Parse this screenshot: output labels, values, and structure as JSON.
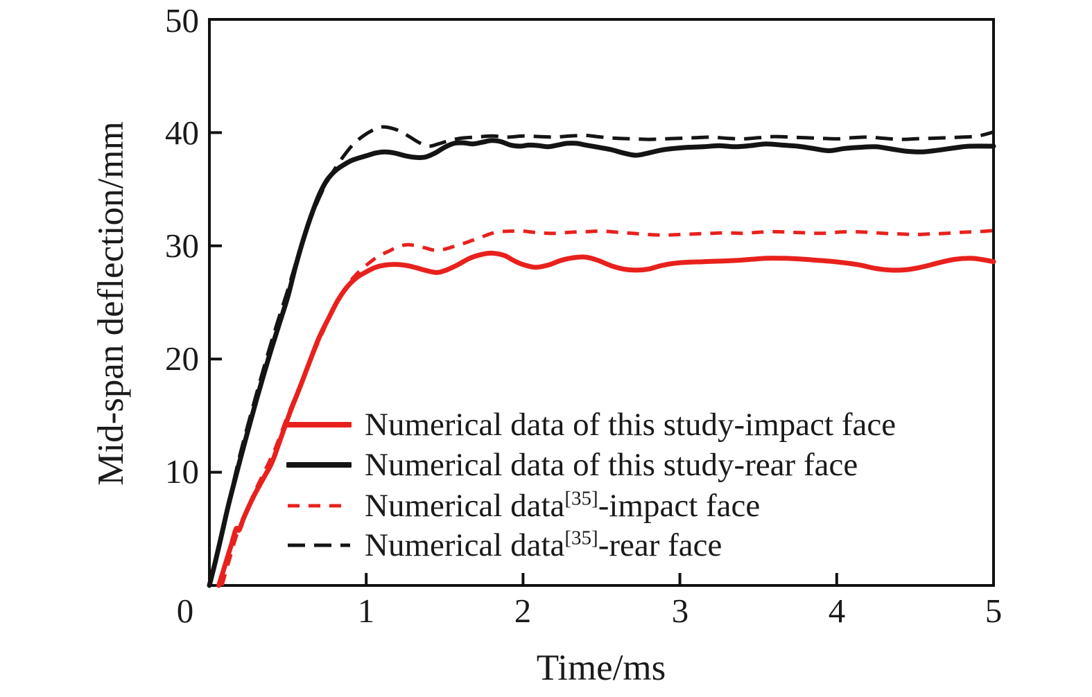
{
  "figure": {
    "background": "#ffffff",
    "axis_color": "#111111",
    "accent_red": "#e8211d",
    "accent_black": "#141414"
  },
  "axes": {
    "x": {
      "title": "Time/ms",
      "tick_labels": [
        "0",
        "1",
        "2",
        "3",
        "4",
        "5"
      ]
    },
    "y": {
      "title": "Mid-span deflection/mm",
      "tick_labels": [
        "10",
        "20",
        "30",
        "40",
        "50"
      ]
    }
  },
  "legend": {
    "items": [
      {
        "pre": "Numerical data of this study-impact face",
        "sup": "",
        "post": ""
      },
      {
        "pre": "Numerical data of this study-rear face",
        "sup": "",
        "post": ""
      },
      {
        "pre": "Numerical data",
        "sup": "[35]",
        "post": "-impact face"
      },
      {
        "pre": "Numerical data",
        "sup": "[35]",
        "post": "-rear face"
      }
    ]
  },
  "chart_data": {
    "type": "line",
    "title": "",
    "xlabel": "Time/ms",
    "ylabel": "Mid-span deflection/mm",
    "xlim": [
      0,
      5
    ],
    "ylim": [
      0,
      50
    ],
    "xticks": [
      0,
      1,
      2,
      3,
      4,
      5
    ],
    "yticks": [
      10,
      20,
      30,
      40,
      50
    ],
    "grid": false,
    "frame": true,
    "legend_position": "inside-lower-right",
    "axis_color": "#111111",
    "series": [
      {
        "name": "Numerical data of this study-impact face",
        "color": "#e8211d",
        "style": "solid",
        "width": 7,
        "dash": null,
        "points": [
          [
            0.06,
            0
          ],
          [
            0.1,
            1.8
          ],
          [
            0.14,
            3.6
          ],
          [
            0.17,
            5.0
          ],
          [
            0.19,
            4.9
          ],
          [
            0.22,
            6.0
          ],
          [
            0.28,
            7.8
          ],
          [
            0.35,
            9.6
          ],
          [
            0.4,
            10.9
          ],
          [
            0.46,
            13.2
          ],
          [
            0.52,
            15.5
          ],
          [
            0.58,
            17.6
          ],
          [
            0.64,
            19.8
          ],
          [
            0.7,
            21.9
          ],
          [
            0.76,
            23.6
          ],
          [
            0.82,
            25.2
          ],
          [
            0.88,
            26.4
          ],
          [
            0.94,
            27.2
          ],
          [
            1.0,
            27.7
          ],
          [
            1.06,
            28.1
          ],
          [
            1.12,
            28.3
          ],
          [
            1.2,
            28.35
          ],
          [
            1.28,
            28.2
          ],
          [
            1.36,
            27.9
          ],
          [
            1.44,
            27.65
          ],
          [
            1.5,
            27.8
          ],
          [
            1.58,
            28.3
          ],
          [
            1.66,
            28.9
          ],
          [
            1.74,
            29.25
          ],
          [
            1.8,
            29.35
          ],
          [
            1.88,
            29.15
          ],
          [
            1.94,
            28.7
          ],
          [
            2.0,
            28.35
          ],
          [
            2.08,
            28.1
          ],
          [
            2.16,
            28.3
          ],
          [
            2.24,
            28.7
          ],
          [
            2.32,
            28.95
          ],
          [
            2.4,
            29.0
          ],
          [
            2.48,
            28.7
          ],
          [
            2.56,
            28.25
          ],
          [
            2.64,
            27.95
          ],
          [
            2.72,
            27.85
          ],
          [
            2.8,
            27.95
          ],
          [
            2.88,
            28.25
          ],
          [
            2.96,
            28.45
          ],
          [
            3.05,
            28.55
          ],
          [
            3.15,
            28.6
          ],
          [
            3.25,
            28.65
          ],
          [
            3.35,
            28.7
          ],
          [
            3.45,
            28.8
          ],
          [
            3.55,
            28.9
          ],
          [
            3.65,
            28.9
          ],
          [
            3.75,
            28.85
          ],
          [
            3.85,
            28.75
          ],
          [
            3.95,
            28.65
          ],
          [
            4.05,
            28.5
          ],
          [
            4.15,
            28.3
          ],
          [
            4.25,
            28.0
          ],
          [
            4.35,
            27.85
          ],
          [
            4.45,
            27.9
          ],
          [
            4.55,
            28.15
          ],
          [
            4.65,
            28.5
          ],
          [
            4.75,
            28.8
          ],
          [
            4.85,
            28.9
          ],
          [
            4.92,
            28.8
          ],
          [
            5.0,
            28.6
          ]
        ]
      },
      {
        "name": "Numerical data of this study-rear face",
        "color": "#141414",
        "style": "solid",
        "width": 7,
        "dash": null,
        "points": [
          [
            0.0,
            0
          ],
          [
            0.04,
            2.2
          ],
          [
            0.08,
            4.6
          ],
          [
            0.12,
            7.0
          ],
          [
            0.16,
            9.2
          ],
          [
            0.2,
            11.3
          ],
          [
            0.25,
            13.9
          ],
          [
            0.3,
            16.4
          ],
          [
            0.35,
            18.8
          ],
          [
            0.4,
            21.1
          ],
          [
            0.45,
            23.3
          ],
          [
            0.5,
            25.5
          ],
          [
            0.55,
            28.2
          ],
          [
            0.6,
            30.6
          ],
          [
            0.65,
            32.7
          ],
          [
            0.7,
            34.5
          ],
          [
            0.75,
            35.8
          ],
          [
            0.8,
            36.6
          ],
          [
            0.85,
            37.1
          ],
          [
            0.9,
            37.5
          ],
          [
            0.95,
            37.75
          ],
          [
            1.0,
            37.95
          ],
          [
            1.06,
            38.2
          ],
          [
            1.12,
            38.3
          ],
          [
            1.18,
            38.2
          ],
          [
            1.25,
            37.95
          ],
          [
            1.32,
            37.8
          ],
          [
            1.38,
            37.85
          ],
          [
            1.44,
            38.2
          ],
          [
            1.5,
            38.7
          ],
          [
            1.56,
            39.05
          ],
          [
            1.62,
            39.1
          ],
          [
            1.68,
            39.0
          ],
          [
            1.74,
            39.15
          ],
          [
            1.8,
            39.3
          ],
          [
            1.86,
            39.2
          ],
          [
            1.92,
            38.9
          ],
          [
            1.98,
            38.8
          ],
          [
            2.04,
            38.9
          ],
          [
            2.1,
            38.85
          ],
          [
            2.16,
            38.75
          ],
          [
            2.22,
            38.9
          ],
          [
            2.28,
            39.05
          ],
          [
            2.34,
            39.05
          ],
          [
            2.4,
            38.9
          ],
          [
            2.48,
            38.7
          ],
          [
            2.56,
            38.5
          ],
          [
            2.64,
            38.2
          ],
          [
            2.72,
            38.0
          ],
          [
            2.8,
            38.2
          ],
          [
            2.88,
            38.45
          ],
          [
            2.96,
            38.6
          ],
          [
            3.05,
            38.7
          ],
          [
            3.15,
            38.75
          ],
          [
            3.25,
            38.85
          ],
          [
            3.35,
            38.75
          ],
          [
            3.45,
            38.85
          ],
          [
            3.55,
            39.0
          ],
          [
            3.65,
            38.9
          ],
          [
            3.75,
            38.8
          ],
          [
            3.85,
            38.6
          ],
          [
            3.95,
            38.4
          ],
          [
            4.05,
            38.6
          ],
          [
            4.15,
            38.7
          ],
          [
            4.25,
            38.75
          ],
          [
            4.35,
            38.55
          ],
          [
            4.45,
            38.35
          ],
          [
            4.55,
            38.3
          ],
          [
            4.65,
            38.45
          ],
          [
            4.75,
            38.65
          ],
          [
            4.85,
            38.8
          ],
          [
            5.0,
            38.8
          ]
        ]
      },
      {
        "name": "Numerical data[35]-impact face",
        "color": "#e8211d",
        "style": "dashed",
        "width": 5,
        "dash": [
          17,
          13
        ],
        "points": [
          [
            0.08,
            0
          ],
          [
            0.13,
            2.4
          ],
          [
            0.18,
            4.7
          ],
          [
            0.24,
            6.7
          ],
          [
            0.3,
            8.6
          ],
          [
            0.36,
            10.3
          ],
          [
            0.42,
            12.1
          ],
          [
            0.48,
            14.3
          ],
          [
            0.54,
            16.4
          ],
          [
            0.6,
            18.4
          ],
          [
            0.66,
            20.4
          ],
          [
            0.72,
            22.3
          ],
          [
            0.78,
            24.1
          ],
          [
            0.84,
            25.7
          ],
          [
            0.9,
            26.9
          ],
          [
            0.96,
            27.8
          ],
          [
            1.02,
            28.5
          ],
          [
            1.08,
            29.1
          ],
          [
            1.14,
            29.5
          ],
          [
            1.2,
            29.9
          ],
          [
            1.26,
            30.1
          ],
          [
            1.32,
            30.0
          ],
          [
            1.38,
            29.8
          ],
          [
            1.44,
            29.6
          ],
          [
            1.5,
            29.7
          ],
          [
            1.56,
            29.95
          ],
          [
            1.62,
            30.2
          ],
          [
            1.68,
            30.5
          ],
          [
            1.74,
            30.8
          ],
          [
            1.8,
            31.1
          ],
          [
            1.86,
            31.25
          ],
          [
            1.92,
            31.3
          ],
          [
            2.0,
            31.3
          ],
          [
            2.1,
            31.15
          ],
          [
            2.2,
            31.1
          ],
          [
            2.3,
            31.2
          ],
          [
            2.4,
            31.25
          ],
          [
            2.5,
            31.3
          ],
          [
            2.6,
            31.2
          ],
          [
            2.7,
            31.1
          ],
          [
            2.8,
            31.0
          ],
          [
            2.9,
            30.95
          ],
          [
            3.0,
            31.0
          ],
          [
            3.1,
            31.05
          ],
          [
            3.2,
            31.1
          ],
          [
            3.3,
            31.15
          ],
          [
            3.4,
            31.1
          ],
          [
            3.5,
            31.2
          ],
          [
            3.6,
            31.25
          ],
          [
            3.7,
            31.2
          ],
          [
            3.8,
            31.15
          ],
          [
            3.9,
            31.1
          ],
          [
            4.0,
            31.2
          ],
          [
            4.1,
            31.25
          ],
          [
            4.2,
            31.2
          ],
          [
            4.3,
            31.1
          ],
          [
            4.4,
            31.05
          ],
          [
            4.5,
            31.0
          ],
          [
            4.6,
            31.05
          ],
          [
            4.7,
            31.1
          ],
          [
            4.8,
            31.2
          ],
          [
            4.9,
            31.25
          ],
          [
            5.0,
            31.35
          ]
        ]
      },
      {
        "name": "Numerical data[35]-rear face",
        "color": "#141414",
        "style": "dashed",
        "width": 5,
        "dash": [
          25,
          13
        ],
        "points": [
          [
            0.0,
            0
          ],
          [
            0.05,
            3.0
          ],
          [
            0.1,
            6.0
          ],
          [
            0.15,
            8.9
          ],
          [
            0.2,
            11.8
          ],
          [
            0.26,
            14.9
          ],
          [
            0.32,
            17.9
          ],
          [
            0.38,
            20.8
          ],
          [
            0.44,
            23.5
          ],
          [
            0.5,
            26.1
          ],
          [
            0.56,
            28.9
          ],
          [
            0.62,
            31.4
          ],
          [
            0.68,
            33.6
          ],
          [
            0.74,
            35.4
          ],
          [
            0.8,
            36.8
          ],
          [
            0.86,
            38.0
          ],
          [
            0.92,
            39.0
          ],
          [
            0.98,
            39.7
          ],
          [
            1.04,
            40.2
          ],
          [
            1.1,
            40.5
          ],
          [
            1.16,
            40.4
          ],
          [
            1.22,
            40.1
          ],
          [
            1.28,
            39.6
          ],
          [
            1.34,
            39.1
          ],
          [
            1.4,
            38.8
          ],
          [
            1.46,
            39.0
          ],
          [
            1.52,
            39.25
          ],
          [
            1.6,
            39.5
          ],
          [
            1.7,
            39.6
          ],
          [
            1.8,
            39.7
          ],
          [
            1.9,
            39.6
          ],
          [
            2.0,
            39.7
          ],
          [
            2.1,
            39.65
          ],
          [
            2.2,
            39.6
          ],
          [
            2.3,
            39.7
          ],
          [
            2.4,
            39.75
          ],
          [
            2.5,
            39.6
          ],
          [
            2.6,
            39.5
          ],
          [
            2.7,
            39.45
          ],
          [
            2.8,
            39.4
          ],
          [
            2.9,
            39.45
          ],
          [
            3.0,
            39.5
          ],
          [
            3.1,
            39.55
          ],
          [
            3.2,
            39.6
          ],
          [
            3.3,
            39.5
          ],
          [
            3.4,
            39.45
          ],
          [
            3.5,
            39.55
          ],
          [
            3.6,
            39.65
          ],
          [
            3.7,
            39.6
          ],
          [
            3.8,
            39.55
          ],
          [
            3.9,
            39.5
          ],
          [
            4.0,
            39.45
          ],
          [
            4.1,
            39.55
          ],
          [
            4.2,
            39.6
          ],
          [
            4.3,
            39.5
          ],
          [
            4.4,
            39.4
          ],
          [
            4.5,
            39.45
          ],
          [
            4.6,
            39.5
          ],
          [
            4.7,
            39.55
          ],
          [
            4.8,
            39.6
          ],
          [
            4.9,
            39.7
          ],
          [
            5.0,
            40.05
          ]
        ]
      }
    ]
  }
}
